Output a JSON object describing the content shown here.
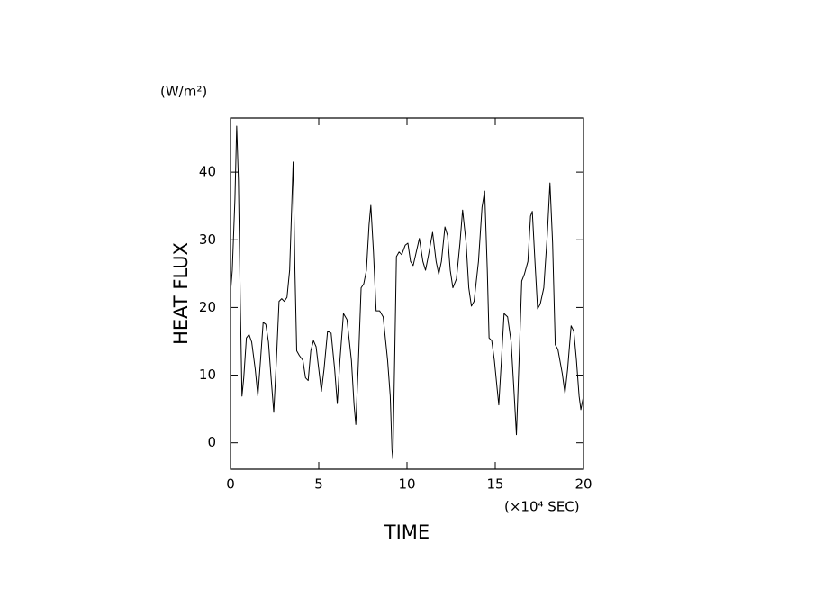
{
  "chart_data": {
    "type": "line",
    "y_axis_label": "HEAT FLUX",
    "x_axis_label": "TIME",
    "y_unit": "(W/m²)",
    "x_unit": "(×10⁴ SEC)",
    "color": "#000000",
    "xlim": [
      0,
      20
    ],
    "ylim": [
      -3.9,
      48
    ],
    "xticks": [
      0,
      5,
      10,
      15,
      20
    ],
    "yticks": [
      0,
      10,
      20,
      30,
      40
    ],
    "grid": false,
    "x": [
      0,
      0.1,
      0.25,
      0.35,
      0.45,
      0.55,
      0.65,
      0.75,
      0.9,
      1.05,
      1.2,
      1.4,
      1.55,
      1.7,
      1.85,
      2.0,
      2.15,
      2.3,
      2.45,
      2.6,
      2.75,
      2.9,
      3.05,
      3.2,
      3.35,
      3.45,
      3.55,
      3.65,
      3.75,
      3.9,
      4.1,
      4.25,
      4.4,
      4.55,
      4.7,
      4.85,
      5.0,
      5.15,
      5.3,
      5.5,
      5.7,
      5.9,
      6.05,
      6.2,
      6.4,
      6.6,
      6.85,
      7.0,
      7.1,
      7.25,
      7.4,
      7.55,
      7.7,
      7.85,
      7.95,
      8.1,
      8.25,
      8.45,
      8.65,
      8.9,
      9.05,
      9.15,
      9.2,
      9.3,
      9.4,
      9.55,
      9.7,
      9.9,
      10.05,
      10.2,
      10.35,
      10.5,
      10.7,
      10.9,
      11.05,
      11.2,
      11.45,
      11.65,
      11.8,
      11.95,
      12.15,
      12.3,
      12.45,
      12.6,
      12.8,
      13.0,
      13.15,
      13.35,
      13.5,
      13.65,
      13.8,
      14.05,
      14.25,
      14.4,
      14.55,
      14.65,
      14.8,
      14.95,
      15.1,
      15.2,
      15.35,
      15.5,
      15.7,
      15.9,
      16.05,
      16.2,
      16.35,
      16.5,
      16.65,
      16.85,
      17.0,
      17.1,
      17.25,
      17.4,
      17.55,
      17.75,
      17.95,
      18.1,
      18.25,
      18.4,
      18.55,
      18.8,
      18.95,
      19.1,
      19.3,
      19.45,
      19.6,
      19.75,
      19.85,
      20.0
    ],
    "values": [
      22.2,
      25.5,
      36,
      46.8,
      38.8,
      21.5,
      6.9,
      9.6,
      15.5,
      16,
      14.9,
      10.9,
      6.9,
      12.2,
      17.8,
      17.5,
      14.9,
      9.6,
      4.5,
      12.2,
      20.9,
      21.3,
      20.9,
      21.5,
      25.5,
      33.5,
      41.5,
      25.5,
      13.6,
      12.9,
      12.2,
      9.6,
      9.2,
      13.6,
      15.1,
      14.2,
      10.9,
      7.6,
      10.9,
      16.5,
      16.2,
      10.9,
      5.8,
      12.2,
      19.1,
      18.2,
      12.2,
      5.6,
      2.7,
      12.2,
      22.9,
      23.5,
      25.5,
      32.2,
      35.1,
      28.2,
      19.5,
      19.5,
      18.6,
      12.2,
      6.9,
      -1.1,
      -2.4,
      12.2,
      27.5,
      28.2,
      27.8,
      29.2,
      29.5,
      26.8,
      26.2,
      27.9,
      30.2,
      26.8,
      25.5,
      27.5,
      31.1,
      26.8,
      24.9,
      26.8,
      31.9,
      30.6,
      25.5,
      22.9,
      24.2,
      29.5,
      34.4,
      29.5,
      22.9,
      20.2,
      20.9,
      26.8,
      34.8,
      37.2,
      25.5,
      15.5,
      15.1,
      12.2,
      8.2,
      5.6,
      12.2,
      19.1,
      18.6,
      14.9,
      8.2,
      1.2,
      12.2,
      23.9,
      24.9,
      26.8,
      33.5,
      34.2,
      26.8,
      19.8,
      20.5,
      22.9,
      30.8,
      38.4,
      29.5,
      14.5,
      13.8,
      10.2,
      7.3,
      10.9,
      17.3,
      16.5,
      12.2,
      6.9,
      4.9,
      6.9
    ]
  }
}
